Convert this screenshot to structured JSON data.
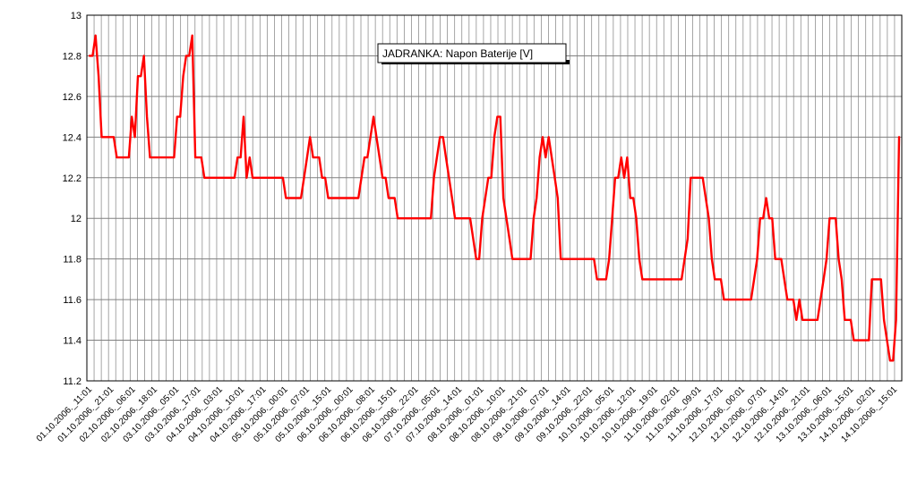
{
  "chart_data": {
    "type": "line",
    "title": "JADRANKA: Napon Baterije [V]",
    "xlabel": "",
    "ylabel": "",
    "ylim": [
      11.2,
      13
    ],
    "y_ticks": [
      "13",
      "12.8",
      "12.6",
      "12.4",
      "12.2",
      "12",
      "11.8",
      "11.6",
      "11.4",
      "11.2"
    ],
    "grid": true,
    "legend": "none",
    "x_tick_labels": [
      "01.10.2006._11:01",
      "01.10.2006._21:01",
      "02.10.2006._06:01",
      "02.10.2006._18:01",
      "03.10.2006._05:01",
      "03.10.2006._17:01",
      "04.10.2006._03:01",
      "04.10.2006._10:01",
      "04.10.2006._17:01",
      "05.10.2006._00:01",
      "05.10.2006._07:01",
      "05.10.2006._15:01",
      "06.10.2006._00:01",
      "06.10.2006._08:01",
      "06.10.2006._15:01",
      "06.10.2006._22:01",
      "07.10.2006._05:01",
      "07.10.2006._14:01",
      "08.10.2006._01:01",
      "08.10.2006._10:01",
      "08.10.2006._21:01",
      "09.10.2006._07:01",
      "09.10.2006._14:01",
      "09.10.2006._22:01",
      "10.10.2006._05:01",
      "10.10.2006._12:01",
      "10.10.2006._19:01",
      "11.10.2006._02:01",
      "11.10.2006._09:01",
      "11.10.2006._17:01",
      "12.10.2006._00:01",
      "12.10.2006._07:01",
      "12.10.2006._14:01",
      "12.10.2006._21:01",
      "13.10.2006._06:01",
      "13.10.2006._15:01",
      "14.10.2006._02:01",
      "14.10.2006._15:01"
    ],
    "line_color": "#ff0000",
    "grid_color": "#808080",
    "series": [
      {
        "values": [
          12.8,
          12.8,
          12.9,
          12.7,
          12.4,
          12.4,
          12.4,
          12.4,
          12.4,
          12.3,
          12.3,
          12.3,
          12.3,
          12.3,
          12.5,
          12.4,
          12.7,
          12.7,
          12.8,
          12.5,
          12.3,
          12.3,
          12.3,
          12.3,
          12.3,
          12.3,
          12.3,
          12.3,
          12.3,
          12.5,
          12.5,
          12.7,
          12.8,
          12.8,
          12.9,
          12.3,
          12.3,
          12.3,
          12.2,
          12.2,
          12.2,
          12.2,
          12.2,
          12.2,
          12.2,
          12.2,
          12.2,
          12.2,
          12.2,
          12.3,
          12.3,
          12.5,
          12.2,
          12.3,
          12.2,
          12.2,
          12.2,
          12.2,
          12.2,
          12.2,
          12.2,
          12.2,
          12.2,
          12.2,
          12.2,
          12.1,
          12.1,
          12.1,
          12.1,
          12.1,
          12.1,
          12.2,
          12.3,
          12.4,
          12.3,
          12.3,
          12.3,
          12.2,
          12.2,
          12.1,
          12.1,
          12.1,
          12.1,
          12.1,
          12.1,
          12.1,
          12.1,
          12.1,
          12.1,
          12.1,
          12.2,
          12.3,
          12.3,
          12.4,
          12.5,
          12.4,
          12.3,
          12.2,
          12.2,
          12.1,
          12.1,
          12.1,
          12.0,
          12.0,
          12.0,
          12.0,
          12.0,
          12.0,
          12.0,
          12.0,
          12.0,
          12.0,
          12.0,
          12.0,
          12.2,
          12.3,
          12.4,
          12.4,
          12.3,
          12.2,
          12.1,
          12.0,
          12.0,
          12.0,
          12.0,
          12.0,
          12.0,
          11.9,
          11.8,
          11.8,
          12.0,
          12.1,
          12.2,
          12.2,
          12.4,
          12.5,
          12.5,
          12.1,
          12.0,
          11.9,
          11.8,
          11.8,
          11.8,
          11.8,
          11.8,
          11.8,
          11.8,
          12.0,
          12.1,
          12.3,
          12.4,
          12.3,
          12.4,
          12.3,
          12.2,
          12.1,
          11.8,
          11.8,
          11.8,
          11.8,
          11.8,
          11.8,
          11.8,
          11.8,
          11.8,
          11.8,
          11.8,
          11.8,
          11.7,
          11.7,
          11.7,
          11.7,
          11.8,
          12.0,
          12.2,
          12.2,
          12.3,
          12.2,
          12.3,
          12.1,
          12.1,
          12.0,
          11.8,
          11.7,
          11.7,
          11.7,
          11.7,
          11.7,
          11.7,
          11.7,
          11.7,
          11.7,
          11.7,
          11.7,
          11.7,
          11.7,
          11.7,
          11.8,
          11.9,
          12.2,
          12.2,
          12.2,
          12.2,
          12.2,
          12.1,
          12.0,
          11.8,
          11.7,
          11.7,
          11.7,
          11.6,
          11.6,
          11.6,
          11.6,
          11.6,
          11.6,
          11.6,
          11.6,
          11.6,
          11.6,
          11.7,
          11.8,
          12.0,
          12.0,
          12.1,
          12.0,
          12.0,
          11.8,
          11.8,
          11.8,
          11.7,
          11.6,
          11.6,
          11.6,
          11.5,
          11.6,
          11.5,
          11.5,
          11.5,
          11.5,
          11.5,
          11.5,
          11.6,
          11.7,
          11.8,
          12.0,
          12.0,
          12.0,
          11.8,
          11.7,
          11.5,
          11.5,
          11.5,
          11.4,
          11.4,
          11.4,
          11.4,
          11.4,
          11.4,
          11.7,
          11.7,
          11.7,
          11.7,
          11.5,
          11.4,
          11.3,
          11.3,
          11.5,
          12.4
        ]
      }
    ]
  }
}
